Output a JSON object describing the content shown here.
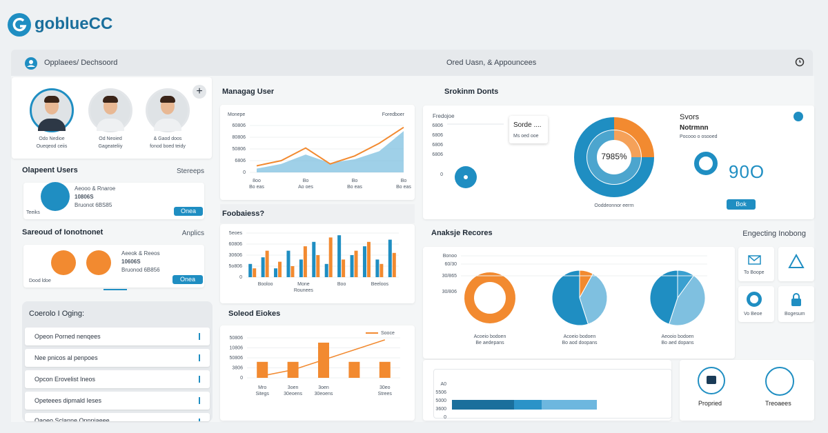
{
  "header": {
    "logo": "goblueCC",
    "breadcrumb": "Opplaees/ Dechsoord",
    "center": "Ored Uasn, & Appouncees"
  },
  "users": [
    {
      "name": "Odo Nedioe",
      "role": "Oueqeod ceiis"
    },
    {
      "name": "Od Neoied",
      "role": "Gageateliiy"
    },
    {
      "name": "& Gaod doos",
      "role": "fonod boed teidy"
    }
  ],
  "recent": {
    "title": "Olapeent Users",
    "action": "Stereeps",
    "lines": [
      "Aeooo & Rnaroe",
      "10806S",
      "Bruonot 6BS85"
    ],
    "tag": "Teeiks",
    "button": "Onea"
  },
  "survey": {
    "title": "Sareoud of Ionotnonet",
    "action": "Anplics",
    "lines": [
      "Aeeok & Reeos",
      "10606S",
      "Bruonod 6B856"
    ],
    "tag": "Dood ldoe",
    "button": "Onea"
  },
  "log": {
    "title": "Coerolo I Oging:",
    "items": [
      "Opeon Porned nenqees",
      "Nee pnicos al penpoes",
      "Opcon Erovelist Ineos",
      "Opeteees dipmald Ieses",
      "Oaoeo Sclanne Onnniaeee"
    ]
  },
  "status": {
    "title": "Svors",
    "subtitle": "Notrmnn",
    "note": "Pocooo o osooed",
    "big": "90O",
    "button": "Bok",
    "tooltip": [
      "Sorde ....",
      "Ms oed ooe"
    ],
    "side_title": "Fredojoe",
    "side_ticks": [
      "6806",
      "6806",
      "6806",
      "6806",
      "0"
    ]
  },
  "analysis": {
    "title": "Anaksje Recores",
    "right_title": "Engecting Inobong",
    "ticks": [
      "Bonoo",
      "60/30",
      "30/865",
      "30/806"
    ],
    "tiles": [
      "To Boope",
      "Vo Beoe",
      "Bogesum"
    ],
    "bottom": [
      "Propried",
      "Treoaees"
    ],
    "bar_ticks": [
      "A0",
      "5506",
      "5000",
      "3600",
      "0"
    ]
  },
  "chart_data": [
    {
      "type": "line",
      "title": "Managag User",
      "legend_left": "Monepe",
      "legend_right": "Foredboer",
      "categories": [
        "8oo",
        null,
        "Bo",
        null,
        "Bo",
        null,
        "Bo"
      ],
      "category_sublabels": [
        "Bo eas",
        null,
        "Ao oes",
        null,
        "Bo eas",
        null,
        "Bo eas"
      ],
      "ylim": [
        0,
        100
      ],
      "yticks": [
        {
          "value": 100,
          "label": "60806"
        },
        {
          "value": 75,
          "label": "80806"
        },
        {
          "value": 50,
          "label": "50806"
        },
        {
          "value": 25,
          "label": "6806"
        },
        0
      ],
      "series": [
        {
          "name": "Monepe",
          "color": "#7fc0e0",
          "values": [
            8,
            18,
            38,
            20,
            28,
            45,
            88
          ]
        },
        {
          "name": "Foredboer",
          "color": "#f28a30",
          "values": [
            14,
            25,
            52,
            18,
            35,
            62,
            96
          ]
        }
      ]
    },
    {
      "type": "bar",
      "title": "Foobaiess?",
      "categories": [
        null,
        "Booloo",
        null,
        null,
        "Mone",
        null,
        null,
        "Boo",
        null,
        null,
        "Beeloos",
        null
      ],
      "category_sublabels": [
        null,
        null,
        null,
        null,
        "Rounees",
        null,
        null,
        null,
        null,
        null,
        null,
        null
      ],
      "ylim": [
        0,
        100
      ],
      "yticks": [
        {
          "value": 100,
          "label": "5eoes"
        },
        {
          "value": 75,
          "label": "60806"
        },
        {
          "value": 50,
          "label": "30606"
        },
        {
          "value": 25,
          "label": "5o806"
        },
        0
      ],
      "series": [
        {
          "name": "A",
          "color": "#1f8ec2",
          "values": [
            30,
            45,
            20,
            60,
            40,
            80,
            30,
            95,
            50,
            70,
            40,
            85
          ]
        },
        {
          "name": "B",
          "color": "#f28a30",
          "values": [
            20,
            60,
            35,
            25,
            70,
            50,
            90,
            40,
            60,
            80,
            30,
            55
          ]
        }
      ]
    },
    {
      "type": "combo",
      "title": "Soleod Eiokes",
      "legend": "Sooce",
      "categories": [
        "Mro",
        "3oen",
        "3oen",
        null,
        "30eo"
      ],
      "category_sublabels": [
        "Sitegs",
        "30eoens",
        "30eoens",
        null,
        "Strees"
      ],
      "ylim": [
        0,
        100
      ],
      "yticks": [
        {
          "value": 100,
          "label": "50806"
        },
        {
          "value": 75,
          "label": "10806"
        },
        {
          "value": 50,
          "label": "50806"
        },
        {
          "value": 25,
          "label": "3806"
        },
        0
      ],
      "series": [
        {
          "name": "Bars",
          "color": "#f28a30",
          "values": [
            40,
            40,
            88,
            40,
            40
          ]
        },
        {
          "name": "Sooce",
          "color": "#f28a30",
          "values": [
            5,
            20,
            45,
            70,
            95
          ]
        }
      ]
    },
    {
      "type": "donut",
      "title": "Srokinm Donts",
      "label": "7985%",
      "caption": "Ooddeonnor eerrn",
      "values": [
        25,
        75
      ],
      "colors": [
        "#f28a30",
        "#1f8ec2"
      ]
    },
    {
      "type": "pie",
      "caption": [
        "Acoeio bodoen",
        "Be aedepans"
      ],
      "ring": true,
      "values": [
        100
      ],
      "colors": [
        "#f28a30"
      ]
    },
    {
      "type": "pie",
      "caption": [
        "Acoeio bodoen",
        "Bo aod doopans"
      ],
      "values": [
        8,
        37,
        55
      ],
      "colors": [
        "#f28a30",
        "#7fc0e0",
        "#1f8ec2"
      ]
    },
    {
      "type": "pie",
      "caption": [
        "Aeooio bodoen",
        "Bo aed dopans"
      ],
      "values": [
        10,
        45,
        45
      ],
      "colors": [
        "#3aa0d0",
        "#7fc0e0",
        "#1f8ec2"
      ]
    },
    {
      "type": "hbar",
      "xlim": [
        0,
        210
      ],
      "values": [
        90,
        40,
        80
      ],
      "colors": [
        "#1a6f9c",
        "#2b93c8",
        "#6db7df"
      ]
    }
  ]
}
